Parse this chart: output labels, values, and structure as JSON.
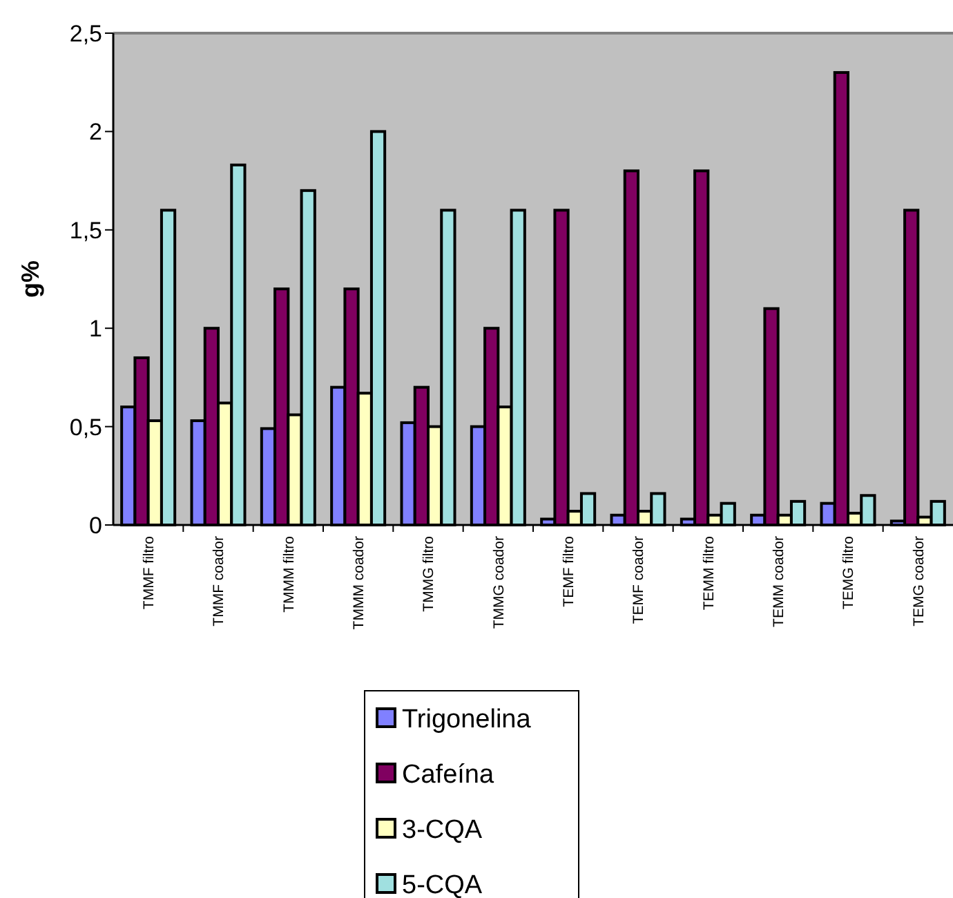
{
  "chart_data": {
    "type": "bar",
    "ylabel": "g%",
    "categories": [
      "TMMF filtro",
      "TMMF coador",
      "TMMM filtro",
      "TMMM coador",
      "TMMG filtro",
      "TMMG coador",
      "TEMF filtro",
      "TEMF coador",
      "TEMM filtro",
      "TEMM coador",
      "TEMG filtro",
      "TEMG coador"
    ],
    "series": [
      {
        "name": "Trigonelina",
        "color": "#8080ff",
        "values": [
          0.6,
          0.53,
          0.49,
          0.7,
          0.52,
          0.5,
          0.03,
          0.05,
          0.03,
          0.05,
          0.11,
          0.02
        ]
      },
      {
        "name": "Cafeína",
        "color": "#800060",
        "values": [
          0.85,
          1.0,
          1.2,
          1.2,
          0.7,
          1.0,
          1.6,
          1.8,
          1.8,
          1.1,
          2.3,
          1.6
        ]
      },
      {
        "name": "3-CQA",
        "color": "#ffffc0",
        "values": [
          0.53,
          0.62,
          0.56,
          0.67,
          0.5,
          0.6,
          0.07,
          0.07,
          0.05,
          0.05,
          0.06,
          0.04
        ]
      },
      {
        "name": "5-CQA",
        "color": "#a0e0e0",
        "values": [
          1.6,
          1.83,
          1.7,
          2.0,
          1.6,
          1.6,
          0.16,
          0.16,
          0.11,
          0.12,
          0.15,
          0.12
        ]
      }
    ],
    "ylim": [
      0,
      2.5
    ],
    "yticks": [
      0,
      {
        "value": 0.5,
        "label": "0,5"
      },
      1,
      {
        "value": 1.5,
        "label": "1,5"
      },
      2,
      {
        "value": 2.5,
        "label": "2,5"
      }
    ],
    "grid": false,
    "legend": "bottom"
  }
}
